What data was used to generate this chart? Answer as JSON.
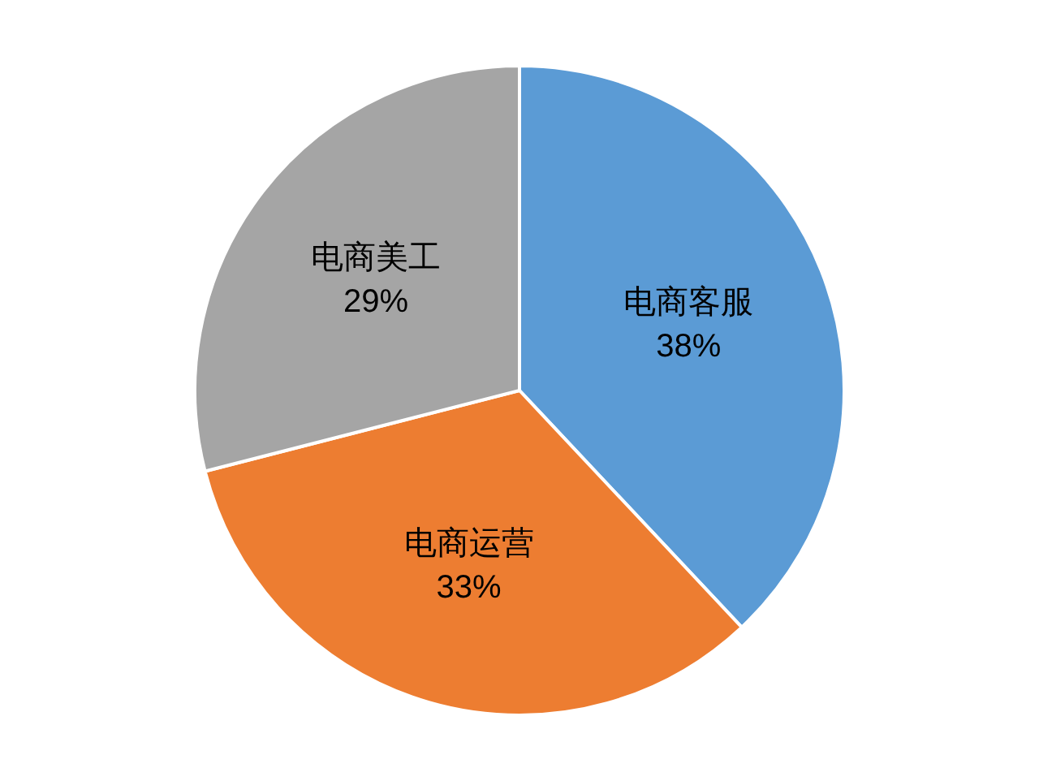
{
  "chart_data": {
    "type": "pie",
    "categories": [
      "电商客服",
      "电商运营",
      "电商美工"
    ],
    "values": [
      38,
      33,
      29
    ],
    "colors": [
      "#5b9bd5",
      "#ed7d31",
      "#a5a5a5"
    ],
    "value_labels": [
      "38%",
      "33%",
      "29%"
    ]
  }
}
